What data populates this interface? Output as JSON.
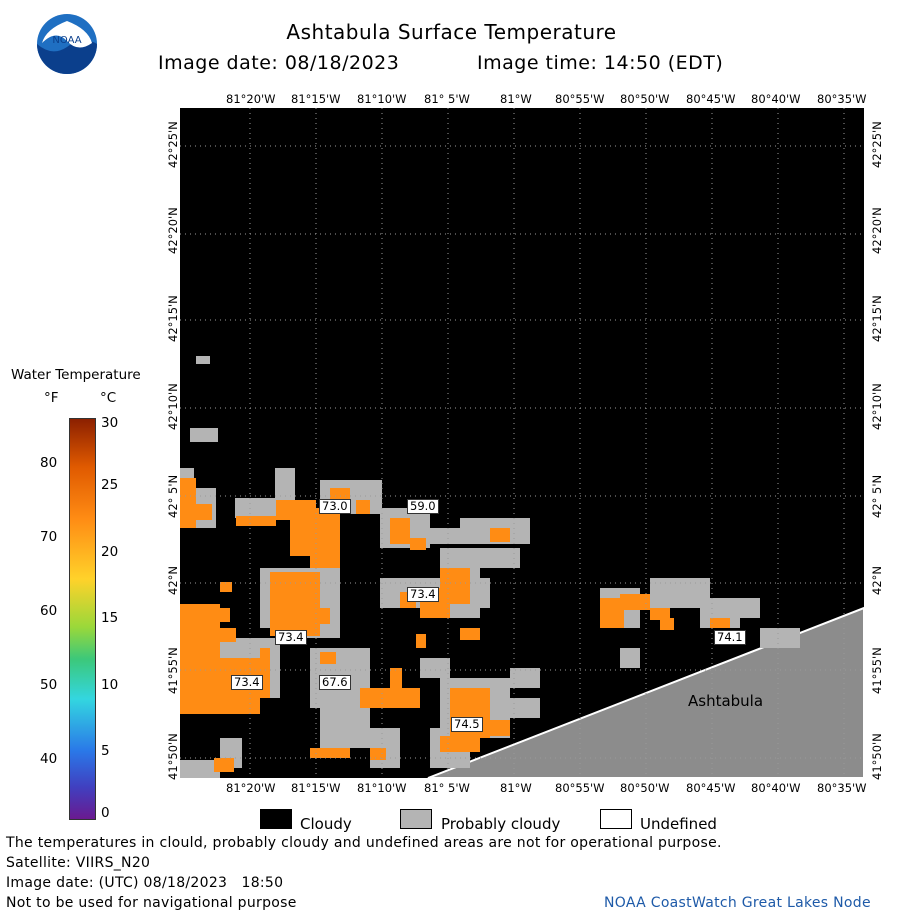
{
  "header": {
    "title": "Ashtabula Surface Temperature",
    "image_date": "Image date: 08/18/2023",
    "image_time": "Image time: 14:50 (EDT)"
  },
  "logo": {
    "text": "NOAA"
  },
  "map": {
    "lon_ticks": [
      "81°20'W",
      "81°15'W",
      "81°10'W",
      "81° 5'W",
      "81°W",
      "80°55'W",
      "80°50'W",
      "80°45'W",
      "80°40'W",
      "80°35'W"
    ],
    "lat_ticks": [
      "42°25'N",
      "42°20'N",
      "42°15'N",
      "42°10'N",
      "42° 5'N",
      "42°N",
      "41°55'N",
      "41°50'N"
    ],
    "place_label": "Ashtabula",
    "temp_labels": [
      "73.0",
      "59.0",
      "73.4",
      "73.4",
      "73.4",
      "67.6",
      "74.5",
      "74.1"
    ]
  },
  "colorbar": {
    "title": "Water Temperature",
    "unit_f": "°F",
    "unit_c": "°C",
    "f_ticks": [
      "80",
      "70",
      "60",
      "50",
      "40"
    ],
    "c_ticks": [
      "30",
      "25",
      "20",
      "15",
      "10",
      "5",
      "0"
    ]
  },
  "legend": {
    "cloudy": "Cloudy",
    "probably_cloudy": "Probably cloudy",
    "undefined": "Undefined"
  },
  "footer": {
    "disclaimer": "The temperatures in clould, probably cloudy and undefined areas are not for operational purpose.",
    "satellite": "Satellite: VIIRS_N20",
    "image_date_utc": "Image date: (UTC) 08/18/2023   18:50",
    "navigation": "Not to be used for navigational purpose",
    "credit": "NOAA CoastWatch Great Lakes Node"
  },
  "colors": {
    "cloudy": "#000000",
    "probably_cloudy": "#b4b4b4",
    "land": "#8c8c8c",
    "water_temp": "#ff8c14",
    "credit": "#1e5aa8"
  }
}
